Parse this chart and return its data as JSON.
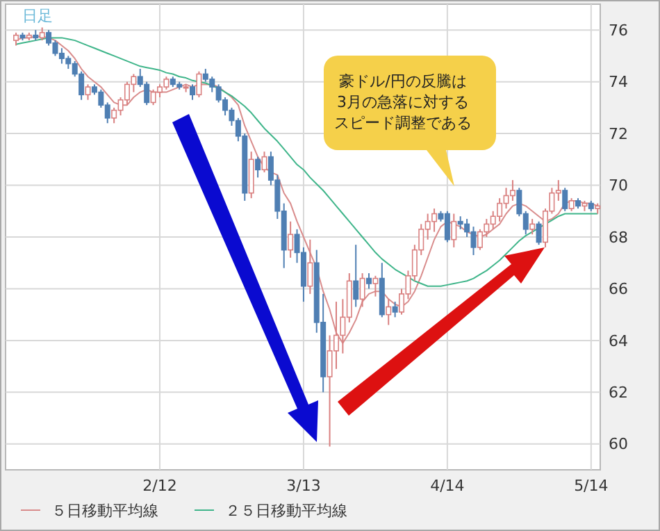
{
  "chart_data": {
    "type": "candlestick",
    "title": "日足",
    "categories": [
      null,
      null,
      null,
      null,
      null,
      null,
      null,
      null,
      null,
      null,
      null,
      null,
      null,
      null,
      null,
      null,
      null,
      null,
      null,
      null,
      null,
      null,
      "2/12",
      null,
      null,
      null,
      null,
      null,
      null,
      null,
      null,
      null,
      null,
      null,
      null,
      null,
      null,
      null,
      null,
      null,
      null,
      null,
      null,
      null,
      "3/13",
      null,
      null,
      null,
      null,
      null,
      null,
      null,
      null,
      null,
      null,
      null,
      null,
      null,
      null,
      null,
      null,
      null,
      null,
      null,
      null,
      null,
      "4/14",
      null,
      null,
      null,
      null,
      null,
      null,
      null,
      null,
      null,
      null,
      null,
      null,
      null,
      null,
      null,
      null,
      null,
      null,
      null,
      null,
      null,
      "5/14",
      null
    ],
    "ohlc": [
      [
        75.6,
        75.9,
        75.4,
        75.8
      ],
      [
        75.8,
        75.9,
        75.6,
        75.7
      ],
      [
        75.7,
        75.9,
        75.6,
        75.8
      ],
      [
        75.8,
        76.0,
        75.6,
        75.7
      ],
      [
        75.7,
        76.1,
        75.6,
        75.9
      ],
      [
        75.9,
        76.0,
        75.4,
        75.5
      ],
      [
        75.5,
        75.6,
        75.0,
        75.1
      ],
      [
        75.1,
        75.3,
        74.7,
        74.9
      ],
      [
        74.9,
        75.0,
        74.5,
        74.7
      ],
      [
        74.7,
        74.8,
        74.2,
        74.3
      ],
      [
        74.3,
        74.4,
        73.3,
        73.5
      ],
      [
        73.5,
        73.9,
        73.3,
        73.8
      ],
      [
        73.8,
        73.9,
        73.5,
        73.6
      ],
      [
        73.6,
        73.7,
        73.0,
        73.1
      ],
      [
        73.1,
        73.2,
        72.4,
        72.6
      ],
      [
        72.6,
        73.0,
        72.4,
        72.9
      ],
      [
        72.9,
        73.4,
        72.7,
        73.3
      ],
      [
        73.3,
        74.0,
        73.1,
        73.9
      ],
      [
        73.9,
        74.3,
        73.6,
        74.2
      ],
      [
        74.2,
        74.5,
        73.8,
        73.9
      ],
      [
        73.9,
        74.0,
        73.1,
        73.2
      ],
      [
        73.2,
        73.7,
        73.1,
        73.6
      ],
      [
        73.6,
        73.9,
        73.4,
        73.8
      ],
      [
        73.8,
        74.2,
        73.7,
        74.1
      ],
      [
        74.1,
        74.2,
        73.8,
        73.9
      ],
      [
        73.9,
        74.0,
        73.7,
        73.8
      ],
      [
        73.8,
        73.9,
        73.6,
        73.8
      ],
      [
        73.8,
        73.9,
        73.3,
        73.5
      ],
      [
        73.5,
        74.4,
        73.4,
        74.3
      ],
      [
        74.3,
        74.5,
        74.0,
        74.1
      ],
      [
        74.1,
        74.2,
        73.6,
        73.8
      ],
      [
        73.8,
        73.9,
        73.2,
        73.3
      ],
      [
        73.3,
        73.4,
        72.7,
        72.9
      ],
      [
        72.9,
        73.0,
        72.3,
        72.5
      ],
      [
        72.5,
        72.6,
        71.7,
        71.9
      ],
      [
        71.9,
        72.0,
        69.4,
        69.7
      ],
      [
        69.7,
        71.3,
        69.5,
        71.0
      ],
      [
        71.0,
        71.1,
        70.3,
        70.6
      ],
      [
        70.6,
        71.3,
        70.5,
        71.1
      ],
      [
        71.1,
        71.3,
        70.0,
        70.2
      ],
      [
        70.2,
        70.4,
        68.7,
        69.0
      ],
      [
        69.0,
        69.3,
        66.8,
        67.5
      ],
      [
        67.5,
        68.6,
        67.2,
        68.1
      ],
      [
        68.1,
        68.3,
        67.0,
        67.4
      ],
      [
        67.4,
        67.6,
        65.5,
        66.1
      ],
      [
        66.1,
        67.9,
        65.8,
        67.0
      ],
      [
        67.0,
        67.5,
        64.3,
        64.7
      ],
      [
        64.7,
        65.8,
        62.0,
        62.6
      ],
      [
        62.6,
        64.2,
        59.9,
        63.6
      ],
      [
        63.6,
        65.5,
        62.9,
        64.2
      ],
      [
        64.2,
        65.6,
        63.5,
        64.9
      ],
      [
        64.9,
        66.6,
        64.7,
        66.3
      ],
      [
        66.3,
        67.7,
        65.3,
        65.6
      ],
      [
        65.6,
        66.6,
        65.3,
        66.4
      ],
      [
        66.4,
        66.6,
        66.0,
        66.2
      ],
      [
        66.2,
        66.5,
        65.7,
        66.4
      ],
      [
        66.4,
        67.0,
        64.9,
        65.0
      ],
      [
        65.0,
        65.6,
        64.6,
        65.3
      ],
      [
        65.3,
        65.5,
        64.9,
        65.1
      ],
      [
        65.1,
        66.0,
        65.0,
        65.8
      ],
      [
        65.8,
        66.7,
        65.6,
        66.5
      ],
      [
        66.5,
        67.7,
        66.3,
        67.5
      ],
      [
        67.5,
        68.5,
        67.3,
        68.3
      ],
      [
        68.3,
        68.9,
        67.9,
        68.6
      ],
      [
        68.6,
        69.1,
        68.2,
        68.9
      ],
      [
        68.9,
        69.0,
        68.6,
        68.7
      ],
      [
        68.9,
        69.0,
        67.8,
        67.9
      ],
      [
        67.9,
        68.9,
        67.6,
        68.6
      ],
      [
        68.6,
        68.8,
        68.3,
        68.5
      ],
      [
        68.5,
        68.7,
        68.0,
        68.2
      ],
      [
        68.2,
        68.4,
        67.3,
        67.6
      ],
      [
        67.6,
        68.3,
        67.5,
        68.2
      ],
      [
        68.2,
        68.7,
        68.0,
        68.5
      ],
      [
        68.5,
        69.0,
        68.3,
        68.8
      ],
      [
        68.8,
        69.5,
        68.6,
        69.3
      ],
      [
        69.3,
        69.9,
        69.1,
        69.6
      ],
      [
        69.6,
        70.2,
        69.4,
        69.8
      ],
      [
        69.8,
        69.9,
        68.8,
        68.9
      ],
      [
        68.9,
        69.0,
        68.1,
        68.3
      ],
      [
        68.3,
        68.7,
        68.1,
        68.5
      ],
      [
        68.5,
        68.6,
        67.7,
        67.8
      ],
      [
        67.8,
        69.1,
        67.6,
        69.0
      ],
      [
        69.0,
        69.9,
        68.9,
        69.7
      ],
      [
        69.7,
        70.2,
        69.4,
        69.8
      ],
      [
        69.8,
        69.9,
        69.0,
        69.1
      ],
      [
        69.1,
        69.5,
        69.0,
        69.4
      ],
      [
        69.4,
        69.5,
        69.1,
        69.2
      ],
      [
        69.2,
        69.4,
        69.0,
        69.3
      ],
      [
        69.3,
        69.4,
        69.0,
        69.1
      ],
      [
        69.1,
        69.3,
        68.9,
        69.2
      ]
    ],
    "series": [
      {
        "type": "line",
        "name": "５日移動平均線",
        "color": "#d98c8c",
        "values": [
          75.6,
          75.7,
          75.7,
          75.75,
          75.75,
          75.7,
          75.6,
          75.4,
          75.2,
          74.9,
          74.5,
          74.2,
          74.0,
          73.8,
          73.5,
          73.2,
          73.1,
          73.1,
          73.4,
          73.6,
          73.7,
          73.6,
          73.6,
          73.6,
          73.7,
          73.8,
          73.9,
          73.8,
          73.9,
          73.9,
          73.9,
          73.8,
          73.6,
          73.4,
          73.1,
          72.3,
          71.7,
          71.1,
          70.7,
          70.5,
          70.4,
          69.7,
          69.3,
          68.6,
          68.0,
          67.4,
          66.8,
          65.9,
          65.2,
          64.3,
          63.9,
          64.3,
          64.8,
          65.5,
          65.8,
          65.9,
          65.9,
          65.6,
          65.4,
          65.3,
          65.5,
          65.9,
          66.5,
          67.2,
          67.9,
          68.4,
          68.6,
          68.5,
          68.4,
          68.2,
          68.1,
          68.0,
          68.1,
          68.3,
          68.5,
          68.9,
          69.2,
          69.3,
          69.2,
          69.0,
          68.8,
          68.6,
          68.7,
          68.9,
          69.3,
          69.4,
          69.4,
          69.3,
          69.3,
          69.2
        ]
      },
      {
        "type": "line",
        "name": "２５日移動平均線",
        "color": "#3fb58a",
        "values": [
          75.45,
          75.5,
          75.55,
          75.6,
          75.65,
          75.7,
          75.7,
          75.7,
          75.65,
          75.6,
          75.5,
          75.4,
          75.3,
          75.2,
          75.1,
          75.0,
          74.9,
          74.8,
          74.7,
          74.6,
          74.55,
          74.5,
          74.45,
          74.35,
          74.3,
          74.2,
          74.15,
          74.05,
          74.0,
          73.95,
          73.85,
          73.75,
          73.6,
          73.45,
          73.25,
          73.05,
          72.8,
          72.5,
          72.2,
          71.95,
          71.7,
          71.4,
          71.1,
          70.8,
          70.6,
          70.3,
          70.05,
          69.8,
          69.5,
          69.2,
          68.9,
          68.6,
          68.3,
          68.0,
          67.7,
          67.4,
          67.15,
          66.95,
          66.75,
          66.6,
          66.45,
          66.3,
          66.2,
          66.1,
          66.1,
          66.1,
          66.15,
          66.2,
          66.25,
          66.3,
          66.4,
          66.55,
          66.7,
          66.9,
          67.1,
          67.35,
          67.6,
          67.85,
          68.05,
          68.2,
          68.35,
          68.5,
          68.65,
          68.8,
          68.9,
          68.9,
          68.9,
          68.9,
          68.9,
          68.9
        ]
      }
    ],
    "ylim": [
      59,
      77
    ],
    "yticks": [
      60,
      62,
      64,
      66,
      68,
      70,
      72,
      74,
      76
    ],
    "grid": true,
    "legend": "bottom",
    "annotations": [
      "豪ドル/円の反騰は3月の急落に対するスピード調整である"
    ]
  }
}
